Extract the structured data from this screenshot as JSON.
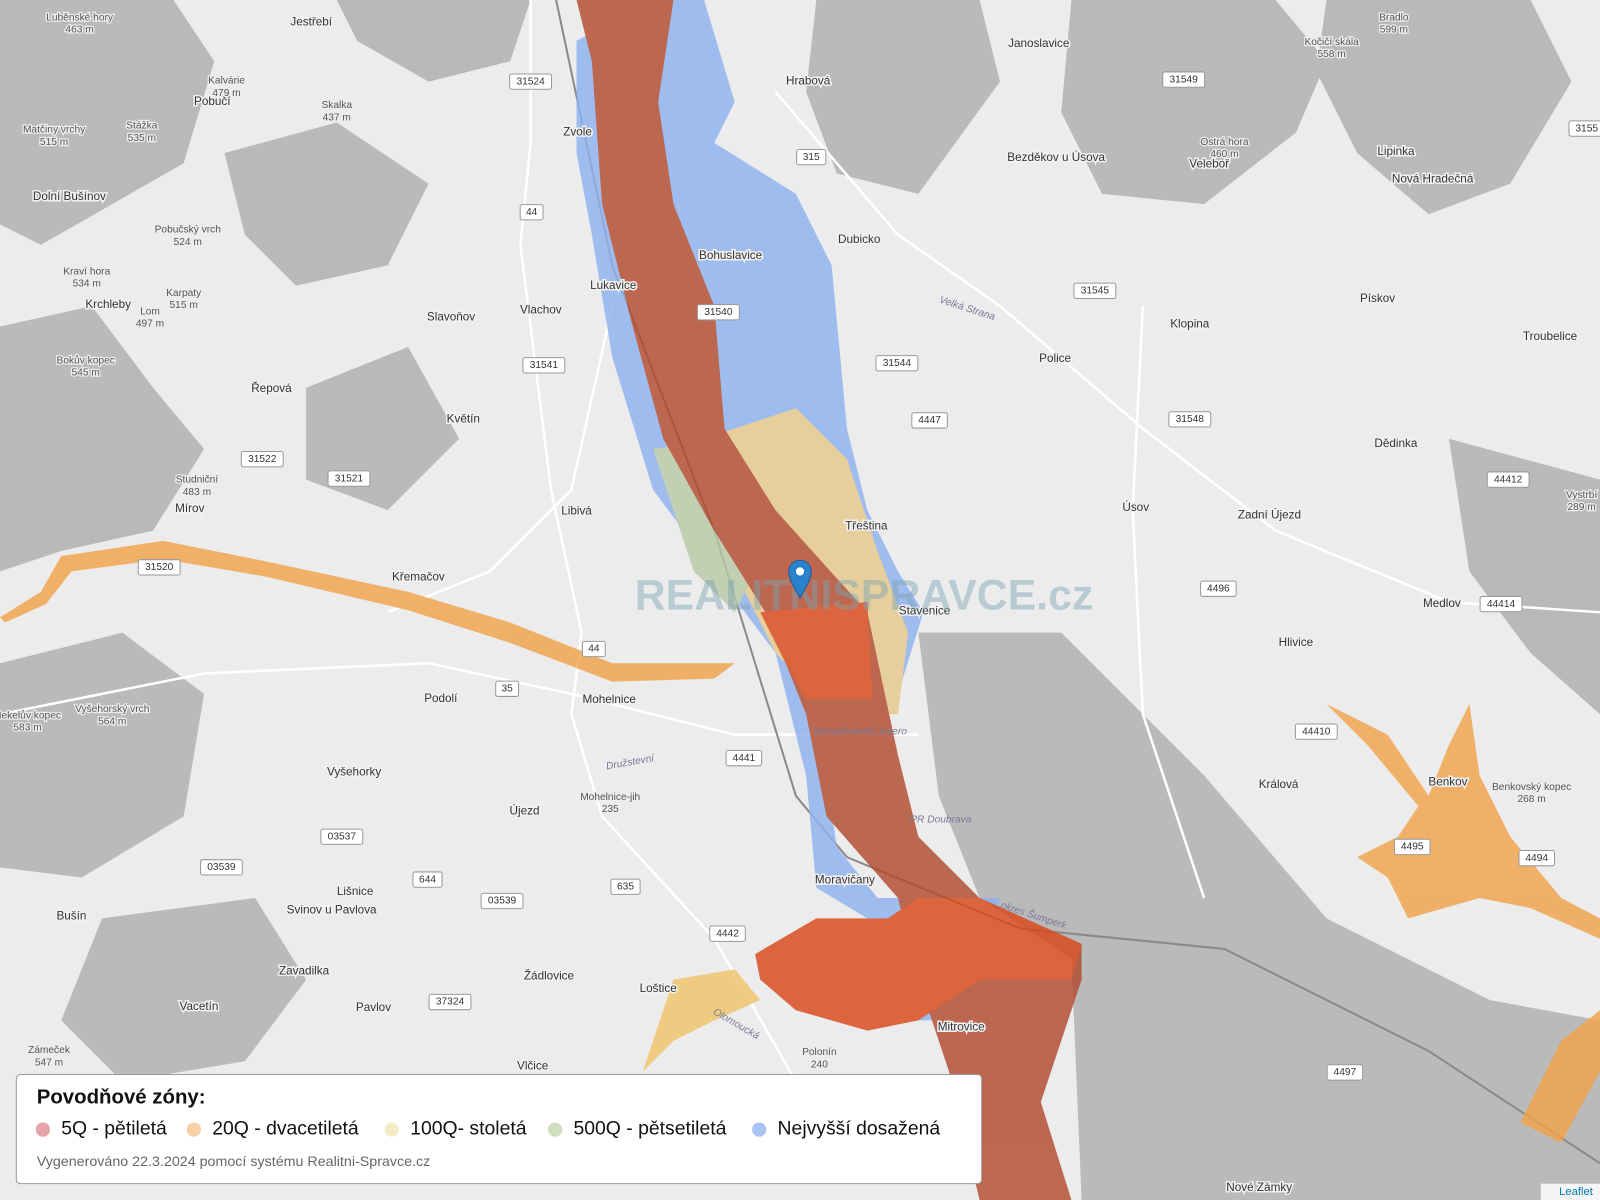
{
  "map": {
    "places": [
      "Jestřebí",
      "Hrabová",
      "Janoslavice",
      "Zvole",
      "Pobučí",
      "Bezděkov u Úsova",
      "Veleboř",
      "Lipinka",
      "Nová Hradečná",
      "Dolní Bušínov",
      "Dubicko",
      "Bohuslavice",
      "Lukavice",
      "Vlachov",
      "Slavoňov",
      "Krchleby",
      "Řepová",
      "Květín",
      "Police",
      "Klopina",
      "Pískov",
      "Troubelice",
      "Dědinka",
      "Libivá",
      "Třeština",
      "Úsov",
      "Zadní Újezd",
      "Mírov",
      "Křemačov",
      "Stavenice",
      "Medlov",
      "Hlivice",
      "Mohelnice",
      "Podolí",
      "Králová",
      "Benkov",
      "Vyšehorky",
      "Újezd",
      "Moravičany",
      "Lišnice",
      "Svinov u Pavlova",
      "Bušín",
      "Zavadilka",
      "Vacetín",
      "Pavlov",
      "Žádlovice",
      "Loštice",
      "Mitrovice",
      "Vlčice",
      "Nové Zámky"
    ],
    "peaks": [
      {
        "name": "Luběnské hory",
        "elevation": "463 m"
      },
      {
        "name": "Kalvárie",
        "elevation": "479 m"
      },
      {
        "name": "Skalka",
        "elevation": "437 m"
      },
      {
        "name": "Stážka",
        "elevation": "535 m"
      },
      {
        "name": "Matčiny vrchy",
        "elevation": "515 m"
      },
      {
        "name": "Pobučský vrch",
        "elevation": "524 m"
      },
      {
        "name": "Kraví hora",
        "elevation": "534 m"
      },
      {
        "name": "Karpaty",
        "elevation": "515 m"
      },
      {
        "name": "Lom",
        "elevation": "497 m"
      },
      {
        "name": "Bokův kopec",
        "elevation": "545 m"
      },
      {
        "name": "Studniční",
        "elevation": "483 m"
      },
      {
        "name": "Ostrá hora",
        "elevation": "460 m"
      },
      {
        "name": "Bradlo",
        "elevation": "599 m"
      },
      {
        "name": "Kočičí skála",
        "elevation": "558 m"
      },
      {
        "name": "Hekelův kopec",
        "elevation": "583 m"
      },
      {
        "name": "Vyšehorský vrch",
        "elevation": "564 m"
      },
      {
        "name": "Zámeček",
        "elevation": "547 m"
      },
      {
        "name": "Benkovský kopec",
        "elevation": "268 m"
      },
      {
        "name": "Vystrbí",
        "elevation": "289 m"
      },
      {
        "name": "Mohelnice-jih",
        "elevation": "235"
      },
      {
        "name": "Polonín",
        "elevation": "240"
      }
    ],
    "roads": [
      "31524",
      "315",
      "31549",
      "44",
      "31540",
      "31541",
      "31544",
      "31545",
      "4447",
      "31548",
      "31522",
      "31521",
      "31520",
      "44412",
      "4496",
      "44414",
      "44410",
      "44",
      "35",
      "4441",
      "03537",
      "03539",
      "644",
      "635",
      "03539",
      "4442",
      "37324",
      "4495",
      "4494",
      "4497",
      "3155"
    ],
    "water_labels": [
      "Moravičanské jezero",
      "PR Doubrava",
      "okres Šumperk",
      "Olomoucká",
      "Velká Strana",
      "Družstevní"
    ],
    "watermark": "REALITNISPRAVCE.cz",
    "attribution": "Leaflet"
  },
  "legend": {
    "title": "Povodňové zóny:",
    "items": [
      {
        "label": "5Q - pětiletá",
        "color": "#e6a3a8"
      },
      {
        "label": "20Q - dvacetiletá",
        "color": "#f7d0a8"
      },
      {
        "label": "100Q- stoletá",
        "color": "#f1ebc6"
      },
      {
        "label": "500Q - pětsetiletá",
        "color": "#d0ddc0"
      },
      {
        "label": "Nejvyšší dosažená",
        "color": "#a9c4f2"
      }
    ],
    "footer": "Vygenerováno 22.3.2024 pomocí systému Realitni-Spravce.cz"
  }
}
